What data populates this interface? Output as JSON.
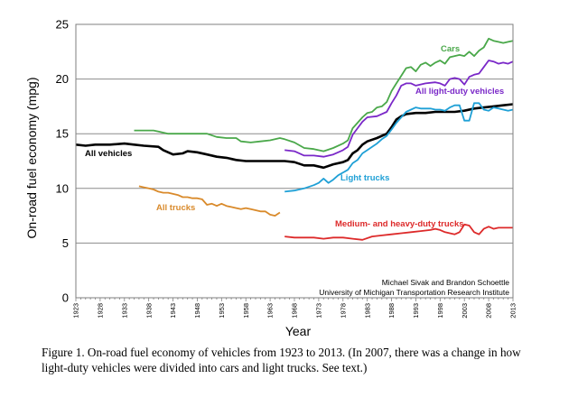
{
  "chart_data": {
    "type": "line",
    "title": "",
    "xlabel": "Year",
    "ylabel": "On-road fuel economy (mpg)",
    "xlim": [
      1923,
      2013
    ],
    "ylim": [
      0,
      25
    ],
    "yticks": [
      0,
      5,
      10,
      15,
      20,
      25
    ],
    "xticks": [
      "1923",
      "1928",
      "1933",
      "1938",
      "1943",
      "1948",
      "1953",
      "1958",
      "1963",
      "1968",
      "1973",
      "1978",
      "1983",
      "1988",
      "1993",
      "1998",
      "2003",
      "2008",
      "2013"
    ],
    "grid": "horizontal",
    "series": [
      {
        "name": "All vehicles",
        "color": "#000000",
        "points": [
          [
            1923,
            14.0
          ],
          [
            1925,
            13.9
          ],
          [
            1927,
            14.0
          ],
          [
            1930,
            14.0
          ],
          [
            1933,
            14.1
          ],
          [
            1935,
            14.0
          ],
          [
            1937,
            13.9
          ],
          [
            1940,
            13.8
          ],
          [
            1941,
            13.5
          ],
          [
            1943,
            13.1
          ],
          [
            1945,
            13.2
          ],
          [
            1946,
            13.4
          ],
          [
            1948,
            13.3
          ],
          [
            1950,
            13.1
          ],
          [
            1952,
            12.9
          ],
          [
            1954,
            12.8
          ],
          [
            1956,
            12.6
          ],
          [
            1958,
            12.5
          ],
          [
            1960,
            12.5
          ],
          [
            1962,
            12.5
          ],
          [
            1964,
            12.5
          ],
          [
            1966,
            12.5
          ],
          [
            1968,
            12.4
          ],
          [
            1970,
            12.1
          ],
          [
            1972,
            12.1
          ],
          [
            1974,
            11.9
          ],
          [
            1976,
            12.2
          ],
          [
            1978,
            12.4
          ],
          [
            1979,
            12.6
          ],
          [
            1980,
            13.2
          ],
          [
            1981,
            13.5
          ],
          [
            1982,
            14.0
          ],
          [
            1983,
            14.3
          ],
          [
            1985,
            14.6
          ],
          [
            1987,
            15.0
          ],
          [
            1988,
            15.6
          ],
          [
            1989,
            16.3
          ],
          [
            1990,
            16.6
          ],
          [
            1991,
            16.8
          ],
          [
            1993,
            16.9
          ],
          [
            1995,
            16.9
          ],
          [
            1997,
            17.0
          ],
          [
            1999,
            17.0
          ],
          [
            2001,
            17.0
          ],
          [
            2003,
            17.1
          ],
          [
            2005,
            17.3
          ],
          [
            2007,
            17.4
          ],
          [
            2009,
            17.5
          ],
          [
            2011,
            17.6
          ],
          [
            2013,
            17.7
          ]
        ]
      },
      {
        "name": "Cars",
        "color": "#4aa84a",
        "points": [
          [
            1935,
            15.3
          ],
          [
            1937,
            15.3
          ],
          [
            1939,
            15.3
          ],
          [
            1940,
            15.2
          ],
          [
            1942,
            15.0
          ],
          [
            1944,
            15.0
          ],
          [
            1946,
            15.0
          ],
          [
            1948,
            15.0
          ],
          [
            1950,
            15.0
          ],
          [
            1952,
            14.7
          ],
          [
            1954,
            14.6
          ],
          [
            1956,
            14.6
          ],
          [
            1957,
            14.3
          ],
          [
            1959,
            14.2
          ],
          [
            1961,
            14.3
          ],
          [
            1963,
            14.4
          ],
          [
            1965,
            14.6
          ],
          [
            1966,
            14.5
          ],
          [
            1968,
            14.2
          ],
          [
            1970,
            13.7
          ],
          [
            1972,
            13.6
          ],
          [
            1974,
            13.4
          ],
          [
            1976,
            13.7
          ],
          [
            1978,
            14.1
          ],
          [
            1979,
            14.4
          ],
          [
            1980,
            15.5
          ],
          [
            1981,
            16.0
          ],
          [
            1982,
            16.5
          ],
          [
            1983,
            16.9
          ],
          [
            1984,
            17.0
          ],
          [
            1985,
            17.4
          ],
          [
            1986,
            17.5
          ],
          [
            1987,
            17.9
          ],
          [
            1988,
            18.9
          ],
          [
            1989,
            19.6
          ],
          [
            1990,
            20.3
          ],
          [
            1991,
            21.0
          ],
          [
            1992,
            21.1
          ],
          [
            1993,
            20.7
          ],
          [
            1994,
            21.3
          ],
          [
            1995,
            21.5
          ],
          [
            1996,
            21.2
          ],
          [
            1997,
            21.5
          ],
          [
            1998,
            21.7
          ],
          [
            1999,
            21.4
          ],
          [
            2000,
            22.0
          ],
          [
            2001,
            22.1
          ],
          [
            2002,
            22.2
          ],
          [
            2003,
            22.1
          ],
          [
            2004,
            22.5
          ],
          [
            2005,
            22.1
          ],
          [
            2006,
            22.6
          ],
          [
            2007,
            22.9
          ],
          [
            2008,
            23.7
          ],
          [
            2009,
            23.5
          ],
          [
            2010,
            23.4
          ],
          [
            2011,
            23.3
          ],
          [
            2012,
            23.4
          ],
          [
            2013,
            23.5
          ]
        ]
      },
      {
        "name": "All light-duty vehicles",
        "color": "#7a28c8",
        "points": [
          [
            1966,
            13.5
          ],
          [
            1968,
            13.4
          ],
          [
            1970,
            13.0
          ],
          [
            1972,
            13.0
          ],
          [
            1974,
            12.9
          ],
          [
            1976,
            13.1
          ],
          [
            1978,
            13.5
          ],
          [
            1979,
            13.8
          ],
          [
            1980,
            14.9
          ],
          [
            1981,
            15.5
          ],
          [
            1982,
            16.1
          ],
          [
            1983,
            16.5
          ],
          [
            1985,
            16.6
          ],
          [
            1987,
            17.0
          ],
          [
            1988,
            17.8
          ],
          [
            1989,
            18.5
          ],
          [
            1990,
            19.4
          ],
          [
            1991,
            19.6
          ],
          [
            1992,
            19.6
          ],
          [
            1993,
            19.4
          ],
          [
            1995,
            19.6
          ],
          [
            1997,
            19.7
          ],
          [
            1998,
            19.6
          ],
          [
            1999,
            19.4
          ],
          [
            2000,
            20.0
          ],
          [
            2001,
            20.1
          ],
          [
            2002,
            20.0
          ],
          [
            2003,
            19.5
          ],
          [
            2004,
            20.2
          ],
          [
            2005,
            20.4
          ],
          [
            2006,
            20.5
          ],
          [
            2007,
            21.1
          ],
          [
            2008,
            21.7
          ],
          [
            2009,
            21.6
          ],
          [
            2010,
            21.4
          ],
          [
            2011,
            21.5
          ],
          [
            2012,
            21.4
          ],
          [
            2013,
            21.6
          ]
        ]
      },
      {
        "name": "Light trucks",
        "color": "#1fa0d6",
        "points": [
          [
            1966,
            9.7
          ],
          [
            1968,
            9.8
          ],
          [
            1970,
            10.0
          ],
          [
            1972,
            10.3
          ],
          [
            1973,
            10.5
          ],
          [
            1974,
            10.9
          ],
          [
            1975,
            10.5
          ],
          [
            1976,
            10.8
          ],
          [
            1977,
            11.2
          ],
          [
            1979,
            11.7
          ],
          [
            1980,
            12.3
          ],
          [
            1981,
            12.6
          ],
          [
            1982,
            13.2
          ],
          [
            1983,
            13.5
          ],
          [
            1984,
            13.8
          ],
          [
            1985,
            14.1
          ],
          [
            1986,
            14.5
          ],
          [
            1987,
            14.8
          ],
          [
            1988,
            15.4
          ],
          [
            1989,
            16.0
          ],
          [
            1990,
            16.5
          ],
          [
            1991,
            17.0
          ],
          [
            1992,
            17.2
          ],
          [
            1993,
            17.4
          ],
          [
            1994,
            17.3
          ],
          [
            1995,
            17.3
          ],
          [
            1996,
            17.3
          ],
          [
            1997,
            17.2
          ],
          [
            1998,
            17.2
          ],
          [
            1999,
            17.1
          ],
          [
            2000,
            17.4
          ],
          [
            2001,
            17.6
          ],
          [
            2002,
            17.6
          ],
          [
            2003,
            16.2
          ],
          [
            2004,
            16.2
          ],
          [
            2005,
            17.8
          ],
          [
            2006,
            17.8
          ],
          [
            2007,
            17.2
          ],
          [
            2008,
            17.1
          ],
          [
            2009,
            17.4
          ],
          [
            2010,
            17.3
          ],
          [
            2011,
            17.2
          ],
          [
            2012,
            17.1
          ],
          [
            2013,
            17.2
          ]
        ]
      },
      {
        "name": "All trucks",
        "color": "#d98a2b",
        "points": [
          [
            1936,
            10.2
          ],
          [
            1937,
            10.1
          ],
          [
            1938,
            10.0
          ],
          [
            1939,
            9.9
          ],
          [
            1940,
            9.7
          ],
          [
            1941,
            9.6
          ],
          [
            1942,
            9.6
          ],
          [
            1943,
            9.5
          ],
          [
            1944,
            9.4
          ],
          [
            1945,
            9.2
          ],
          [
            1946,
            9.2
          ],
          [
            1947,
            9.1
          ],
          [
            1948,
            9.1
          ],
          [
            1949,
            9.0
          ],
          [
            1950,
            8.5
          ],
          [
            1951,
            8.6
          ],
          [
            1952,
            8.4
          ],
          [
            1953,
            8.6
          ],
          [
            1954,
            8.4
          ],
          [
            1955,
            8.3
          ],
          [
            1956,
            8.2
          ],
          [
            1957,
            8.1
          ],
          [
            1958,
            8.2
          ],
          [
            1959,
            8.1
          ],
          [
            1960,
            8.0
          ],
          [
            1961,
            7.9
          ],
          [
            1962,
            7.9
          ],
          [
            1963,
            7.6
          ],
          [
            1964,
            7.5
          ],
          [
            1965,
            7.8
          ]
        ]
      },
      {
        "name": "Medium- and heavy-duty trucks",
        "color": "#dd2a2a",
        "points": [
          [
            1966,
            5.6
          ],
          [
            1968,
            5.5
          ],
          [
            1970,
            5.5
          ],
          [
            1972,
            5.5
          ],
          [
            1974,
            5.4
          ],
          [
            1976,
            5.5
          ],
          [
            1978,
            5.5
          ],
          [
            1980,
            5.4
          ],
          [
            1982,
            5.3
          ],
          [
            1984,
            5.6
          ],
          [
            1986,
            5.7
          ],
          [
            1988,
            5.8
          ],
          [
            1990,
            5.9
          ],
          [
            1992,
            6.0
          ],
          [
            1994,
            6.1
          ],
          [
            1996,
            6.2
          ],
          [
            1997,
            6.3
          ],
          [
            1998,
            6.2
          ],
          [
            1999,
            6.0
          ],
          [
            2000,
            5.9
          ],
          [
            2001,
            5.8
          ],
          [
            2002,
            6.0
          ],
          [
            2003,
            6.7
          ],
          [
            2004,
            6.6
          ],
          [
            2005,
            6.0
          ],
          [
            2006,
            5.8
          ],
          [
            2007,
            6.3
          ],
          [
            2008,
            6.5
          ],
          [
            2009,
            6.3
          ],
          [
            2010,
            6.4
          ],
          [
            2011,
            6.4
          ],
          [
            2012,
            6.4
          ],
          [
            2013,
            6.4
          ]
        ]
      }
    ],
    "credit_lines": [
      "Michael Sivak and Brandon Schoettle",
      "University of Michigan Transportation Research Institute"
    ]
  },
  "caption": "Figure 1.  On-road fuel economy of vehicles from 1923 to 2013.  (In 2007, there was a change in how light-duty vehicles were divided into cars and light trucks.  See text.)"
}
